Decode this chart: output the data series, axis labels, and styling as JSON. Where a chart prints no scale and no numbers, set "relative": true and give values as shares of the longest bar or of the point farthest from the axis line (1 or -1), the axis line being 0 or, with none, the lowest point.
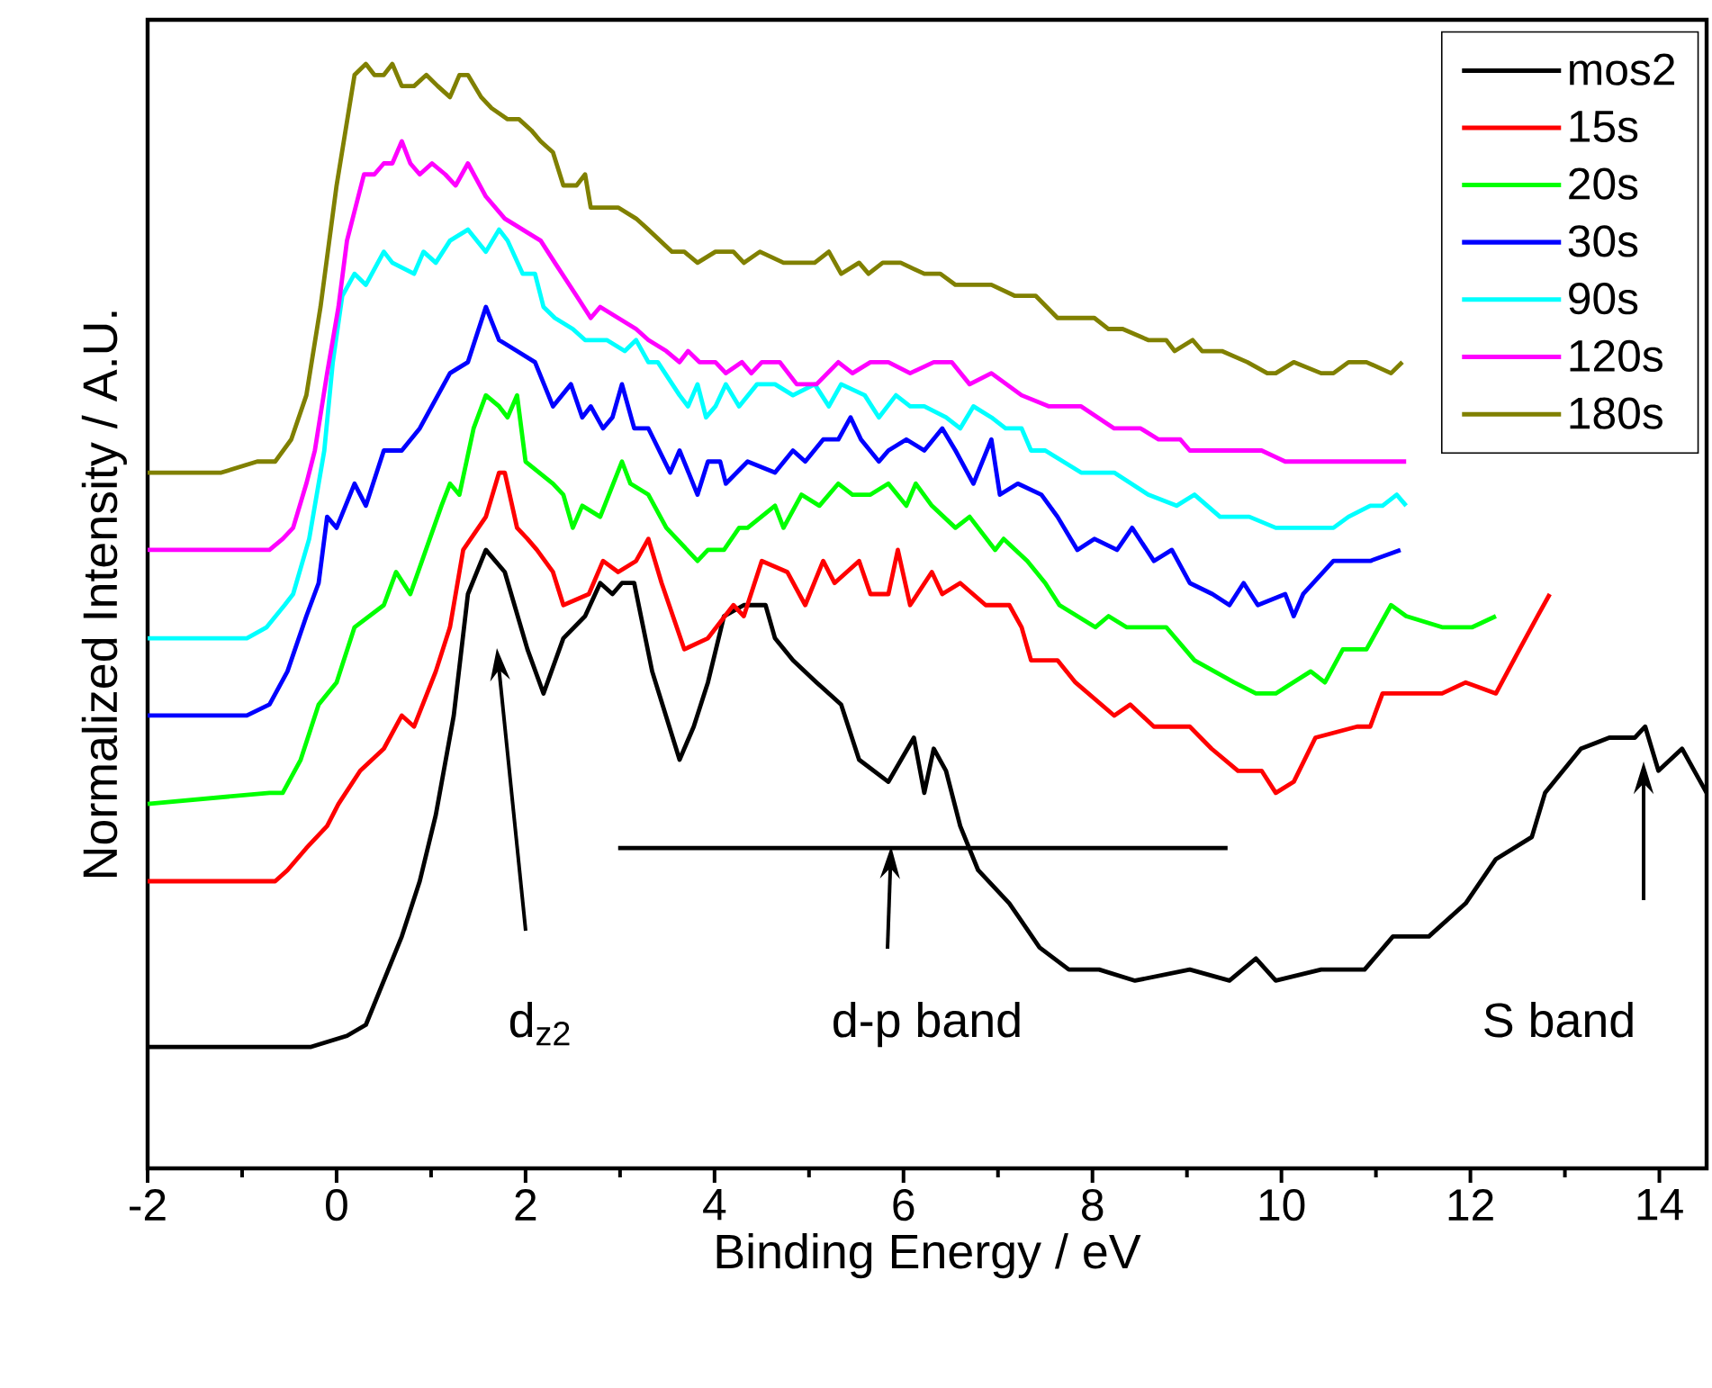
{
  "chart_data": {
    "type": "line",
    "xlabel": "Binding Energy / eV",
    "ylabel": "Normalized Intensity / A.U.",
    "relative": true,
    "xlim": [
      -2,
      14.5
    ],
    "xticks": [
      -2,
      0,
      2,
      4,
      6,
      8,
      10,
      12,
      14
    ],
    "legend": "top right",
    "series": [
      {
        "name": "mos2",
        "color": "#000000",
        "x": [
          -2.0,
          -0.52,
          -0.27,
          0.11,
          0.31,
          0.69,
          0.88,
          1.05,
          1.24,
          1.39,
          1.58,
          1.78,
          2.02,
          2.19,
          2.4,
          2.63,
          2.79,
          2.92,
          3.02,
          3.15,
          3.34,
          3.63,
          3.78,
          3.93,
          4.1,
          4.31,
          4.54,
          4.64,
          4.83,
          5.08,
          5.34,
          5.53,
          5.84,
          6.11,
          6.22,
          6.32,
          6.45,
          6.6,
          6.79,
          7.12,
          7.44,
          7.75,
          8.07,
          8.45,
          9.03,
          9.45,
          9.73,
          9.94,
          10.42,
          10.88,
          11.18,
          11.56,
          11.95,
          12.27,
          12.65,
          12.79,
          13.17,
          13.47,
          13.74,
          13.85,
          13.99,
          14.24,
          14.37,
          14.5
        ],
        "values": [
          0.11,
          0.11,
          0.11,
          0.12,
          0.13,
          0.21,
          0.26,
          0.32,
          0.41,
          0.52,
          0.56,
          0.54,
          0.47,
          0.43,
          0.48,
          0.5,
          0.53,
          0.52,
          0.53,
          0.53,
          0.45,
          0.37,
          0.4,
          0.44,
          0.5,
          0.51,
          0.51,
          0.48,
          0.46,
          0.44,
          0.42,
          0.37,
          0.35,
          0.39,
          0.34,
          0.38,
          0.36,
          0.31,
          0.27,
          0.24,
          0.2,
          0.18,
          0.18,
          0.17,
          0.18,
          0.17,
          0.19,
          0.17,
          0.18,
          0.18,
          0.21,
          0.21,
          0.24,
          0.28,
          0.3,
          0.34,
          0.38,
          0.39,
          0.39,
          0.4,
          0.36,
          0.38,
          0.36,
          0.34
        ]
      },
      {
        "name": "15s",
        "color": "#ff0000",
        "x": [
          -2.0,
          -0.65,
          -0.52,
          -0.32,
          -0.1,
          0.02,
          0.25,
          0.5,
          0.69,
          0.82,
          1.05,
          1.2,
          1.34,
          1.58,
          1.72,
          1.78,
          1.91,
          2.02,
          2.12,
          2.29,
          2.4,
          2.67,
          2.82,
          2.98,
          3.17,
          3.3,
          3.44,
          3.68,
          3.93,
          4.2,
          4.31,
          4.5,
          4.77,
          4.96,
          5.15,
          5.27,
          5.53,
          5.65,
          5.84,
          5.94,
          6.07,
          6.3,
          6.41,
          6.6,
          6.87,
          7.12,
          7.25,
          7.35,
          7.63,
          7.82,
          8.23,
          8.4,
          8.65,
          9.03,
          9.26,
          9.54,
          9.79,
          9.94,
          10.13,
          10.36,
          10.8,
          10.94,
          11.07,
          11.37,
          11.7,
          11.95,
          12.27,
          12.52,
          12.71,
          12.84
        ],
        "values": [
          0.26,
          0.26,
          0.27,
          0.29,
          0.31,
          0.33,
          0.36,
          0.38,
          0.41,
          0.4,
          0.45,
          0.49,
          0.56,
          0.59,
          0.63,
          0.63,
          0.58,
          0.57,
          0.56,
          0.54,
          0.51,
          0.52,
          0.55,
          0.54,
          0.55,
          0.57,
          0.53,
          0.47,
          0.48,
          0.51,
          0.5,
          0.55,
          0.54,
          0.51,
          0.55,
          0.53,
          0.55,
          0.52,
          0.52,
          0.56,
          0.51,
          0.54,
          0.52,
          0.53,
          0.51,
          0.51,
          0.49,
          0.46,
          0.46,
          0.44,
          0.41,
          0.42,
          0.4,
          0.4,
          0.38,
          0.36,
          0.36,
          0.34,
          0.35,
          0.39,
          0.4,
          0.4,
          0.43,
          0.43,
          0.43,
          0.44,
          0.43,
          0.47,
          0.5,
          0.52
        ]
      },
      {
        "name": "20s",
        "color": "#00ff00",
        "x": [
          -2.0,
          -0.71,
          -0.57,
          -0.38,
          -0.19,
          0.0,
          0.19,
          0.5,
          0.63,
          0.78,
          1.11,
          1.2,
          1.3,
          1.45,
          1.58,
          1.72,
          1.81,
          1.91,
          2.0,
          2.29,
          2.4,
          2.5,
          2.6,
          2.79,
          3.02,
          3.11,
          3.3,
          3.49,
          3.82,
          3.93,
          4.1,
          4.26,
          4.35,
          4.64,
          4.73,
          4.92,
          5.11,
          5.31,
          5.46,
          5.65,
          5.84,
          6.03,
          6.13,
          6.3,
          6.55,
          6.7,
          6.97,
          7.06,
          7.31,
          7.5,
          7.65,
          7.84,
          8.03,
          8.17,
          8.36,
          8.78,
          9.08,
          9.5,
          9.73,
          9.94,
          10.31,
          10.46,
          10.65,
          10.9,
          11.16,
          11.32,
          11.7,
          12.02,
          12.27
        ],
        "values": [
          0.33,
          0.34,
          0.34,
          0.37,
          0.42,
          0.44,
          0.49,
          0.51,
          0.54,
          0.52,
          0.6,
          0.62,
          0.61,
          0.67,
          0.7,
          0.69,
          0.68,
          0.7,
          0.64,
          0.62,
          0.61,
          0.58,
          0.6,
          0.59,
          0.64,
          0.62,
          0.61,
          0.58,
          0.55,
          0.56,
          0.56,
          0.58,
          0.58,
          0.6,
          0.58,
          0.61,
          0.6,
          0.62,
          0.61,
          0.61,
          0.62,
          0.6,
          0.62,
          0.6,
          0.58,
          0.59,
          0.56,
          0.57,
          0.55,
          0.53,
          0.51,
          0.5,
          0.49,
          0.5,
          0.49,
          0.49,
          0.46,
          0.44,
          0.43,
          0.43,
          0.45,
          0.44,
          0.47,
          0.47,
          0.51,
          0.5,
          0.49,
          0.49,
          0.5
        ]
      },
      {
        "name": "30s",
        "color": "#0000ff",
        "x": [
          -2.0,
          -0.95,
          -0.71,
          -0.52,
          -0.32,
          -0.19,
          -0.1,
          0.0,
          0.19,
          0.31,
          0.5,
          0.69,
          0.88,
          1.2,
          1.39,
          1.58,
          1.72,
          1.91,
          2.1,
          2.29,
          2.48,
          2.6,
          2.69,
          2.82,
          2.92,
          3.02,
          3.15,
          3.3,
          3.53,
          3.63,
          3.82,
          3.93,
          4.06,
          4.12,
          4.35,
          4.64,
          4.83,
          4.96,
          5.15,
          5.31,
          5.44,
          5.55,
          5.74,
          5.84,
          6.03,
          6.22,
          6.41,
          6.55,
          6.74,
          6.93,
          7.02,
          7.21,
          7.46,
          7.63,
          7.84,
          8.02,
          8.26,
          8.42,
          8.65,
          8.84,
          9.03,
          9.27,
          9.45,
          9.6,
          9.75,
          10.04,
          10.13,
          10.23,
          10.55,
          10.94,
          11.26
        ],
        "values": [
          0.41,
          0.41,
          0.42,
          0.45,
          0.5,
          0.53,
          0.59,
          0.58,
          0.62,
          0.6,
          0.65,
          0.65,
          0.67,
          0.72,
          0.73,
          0.78,
          0.75,
          0.74,
          0.73,
          0.69,
          0.71,
          0.68,
          0.69,
          0.67,
          0.68,
          0.71,
          0.67,
          0.67,
          0.63,
          0.65,
          0.61,
          0.64,
          0.64,
          0.62,
          0.64,
          0.63,
          0.65,
          0.64,
          0.66,
          0.66,
          0.68,
          0.66,
          0.64,
          0.65,
          0.66,
          0.65,
          0.67,
          0.65,
          0.62,
          0.66,
          0.61,
          0.62,
          0.61,
          0.59,
          0.56,
          0.57,
          0.56,
          0.58,
          0.55,
          0.56,
          0.53,
          0.52,
          0.51,
          0.53,
          0.51,
          0.52,
          0.5,
          0.52,
          0.55,
          0.55,
          0.56
        ]
      },
      {
        "name": "90s",
        "color": "#00ffff",
        "x": [
          -2.0,
          -0.95,
          -0.74,
          -0.55,
          -0.46,
          -0.29,
          -0.13,
          -0.04,
          0.06,
          0.19,
          0.31,
          0.5,
          0.59,
          0.82,
          0.92,
          1.05,
          1.2,
          1.39,
          1.58,
          1.72,
          1.81,
          1.97,
          2.1,
          2.19,
          2.31,
          2.5,
          2.63,
          2.86,
          3.05,
          3.17,
          3.3,
          3.4,
          3.63,
          3.72,
          3.82,
          3.91,
          4.01,
          4.12,
          4.26,
          4.45,
          4.64,
          4.83,
          5.06,
          5.21,
          5.34,
          5.59,
          5.74,
          5.92,
          6.07,
          6.22,
          6.45,
          6.6,
          6.74,
          6.93,
          7.08,
          7.25,
          7.35,
          7.5,
          7.69,
          7.88,
          8.03,
          8.23,
          8.59,
          8.89,
          9.08,
          9.35,
          9.66,
          9.94,
          10.21,
          10.55,
          10.71,
          10.94,
          11.07,
          11.22,
          11.32
        ],
        "values": [
          0.48,
          0.48,
          0.49,
          0.51,
          0.52,
          0.57,
          0.65,
          0.73,
          0.79,
          0.81,
          0.8,
          0.83,
          0.82,
          0.81,
          0.83,
          0.82,
          0.84,
          0.85,
          0.83,
          0.85,
          0.84,
          0.81,
          0.81,
          0.78,
          0.77,
          0.76,
          0.75,
          0.75,
          0.74,
          0.75,
          0.73,
          0.73,
          0.7,
          0.69,
          0.71,
          0.68,
          0.69,
          0.71,
          0.69,
          0.71,
          0.71,
          0.7,
          0.71,
          0.69,
          0.71,
          0.7,
          0.68,
          0.7,
          0.69,
          0.69,
          0.68,
          0.67,
          0.69,
          0.68,
          0.67,
          0.67,
          0.65,
          0.65,
          0.64,
          0.63,
          0.63,
          0.63,
          0.61,
          0.6,
          0.61,
          0.59,
          0.59,
          0.58,
          0.58,
          0.58,
          0.59,
          0.6,
          0.6,
          0.61,
          0.6
        ]
      },
      {
        "name": "120s",
        "color": "#ff00ff",
        "x": [
          -2.0,
          -0.71,
          -0.57,
          -0.46,
          -0.32,
          -0.23,
          -0.1,
          0.02,
          0.11,
          0.29,
          0.4,
          0.5,
          0.59,
          0.69,
          0.78,
          0.88,
          1.01,
          1.15,
          1.26,
          1.39,
          1.58,
          1.78,
          1.97,
          2.16,
          2.31,
          2.54,
          2.69,
          2.79,
          2.98,
          3.17,
          3.3,
          3.49,
          3.63,
          3.72,
          3.84,
          4.01,
          4.12,
          4.29,
          4.39,
          4.5,
          4.69,
          4.87,
          5.08,
          5.31,
          5.46,
          5.65,
          5.84,
          6.07,
          6.32,
          6.51,
          6.7,
          6.93,
          7.25,
          7.54,
          7.88,
          8.23,
          8.36,
          8.51,
          8.7,
          8.93,
          9.03,
          9.22,
          9.54,
          9.79,
          10.04,
          10.36,
          10.69,
          10.94,
          11.13,
          11.32
        ],
        "values": [
          0.56,
          0.56,
          0.57,
          0.58,
          0.62,
          0.65,
          0.72,
          0.78,
          0.84,
          0.9,
          0.9,
          0.91,
          0.91,
          0.93,
          0.91,
          0.9,
          0.91,
          0.9,
          0.89,
          0.91,
          0.88,
          0.86,
          0.85,
          0.84,
          0.82,
          0.79,
          0.77,
          0.78,
          0.77,
          0.76,
          0.75,
          0.74,
          0.73,
          0.74,
          0.73,
          0.73,
          0.72,
          0.73,
          0.72,
          0.73,
          0.73,
          0.71,
          0.71,
          0.73,
          0.72,
          0.73,
          0.73,
          0.72,
          0.73,
          0.73,
          0.71,
          0.72,
          0.7,
          0.69,
          0.69,
          0.67,
          0.67,
          0.67,
          0.66,
          0.66,
          0.65,
          0.65,
          0.65,
          0.65,
          0.64,
          0.64,
          0.64,
          0.64,
          0.64,
          0.64
        ]
      },
      {
        "name": "180s",
        "color": "#808000",
        "x": [
          -2.0,
          -1.22,
          -0.84,
          -0.65,
          -0.48,
          -0.32,
          -0.17,
          0.0,
          0.19,
          0.31,
          0.4,
          0.5,
          0.59,
          0.69,
          0.82,
          0.95,
          1.07,
          1.2,
          1.3,
          1.39,
          1.53,
          1.64,
          1.81,
          1.93,
          2.06,
          2.16,
          2.29,
          2.4,
          2.54,
          2.63,
          2.69,
          2.82,
          2.98,
          3.17,
          3.3,
          3.55,
          3.68,
          3.82,
          4.01,
          4.2,
          4.31,
          4.48,
          4.73,
          5.06,
          5.21,
          5.34,
          5.53,
          5.63,
          5.78,
          5.97,
          6.22,
          6.39,
          6.55,
          6.74,
          6.93,
          7.18,
          7.4,
          7.63,
          7.82,
          8.02,
          8.17,
          8.32,
          8.59,
          8.78,
          8.87,
          9.06,
          9.16,
          9.37,
          9.64,
          9.85,
          9.94,
          10.13,
          10.42,
          10.55,
          10.71,
          10.9,
          11.16,
          11.28
        ],
        "values": [
          0.63,
          0.63,
          0.64,
          0.64,
          0.66,
          0.7,
          0.78,
          0.89,
          0.99,
          1.0,
          0.99,
          0.99,
          1.0,
          0.98,
          0.98,
          0.99,
          0.98,
          0.97,
          0.99,
          0.99,
          0.97,
          0.96,
          0.95,
          0.95,
          0.94,
          0.93,
          0.92,
          0.89,
          0.89,
          0.9,
          0.87,
          0.87,
          0.87,
          0.86,
          0.85,
          0.83,
          0.83,
          0.82,
          0.83,
          0.83,
          0.82,
          0.83,
          0.82,
          0.82,
          0.83,
          0.81,
          0.82,
          0.81,
          0.82,
          0.82,
          0.81,
          0.81,
          0.8,
          0.8,
          0.8,
          0.79,
          0.79,
          0.77,
          0.77,
          0.77,
          0.76,
          0.76,
          0.75,
          0.75,
          0.74,
          0.75,
          0.74,
          0.74,
          0.73,
          0.72,
          0.72,
          0.73,
          0.72,
          0.72,
          0.73,
          0.73,
          0.72,
          0.73
        ]
      },
      {
        "color": "#000000",
        "x": [
          2.98,
          9.43
        ],
        "values": [
          0.29,
          0.29
        ]
      }
    ],
    "annotations": [
      "d$_{z2}$",
      "d-p band",
      "S band"
    ]
  }
}
